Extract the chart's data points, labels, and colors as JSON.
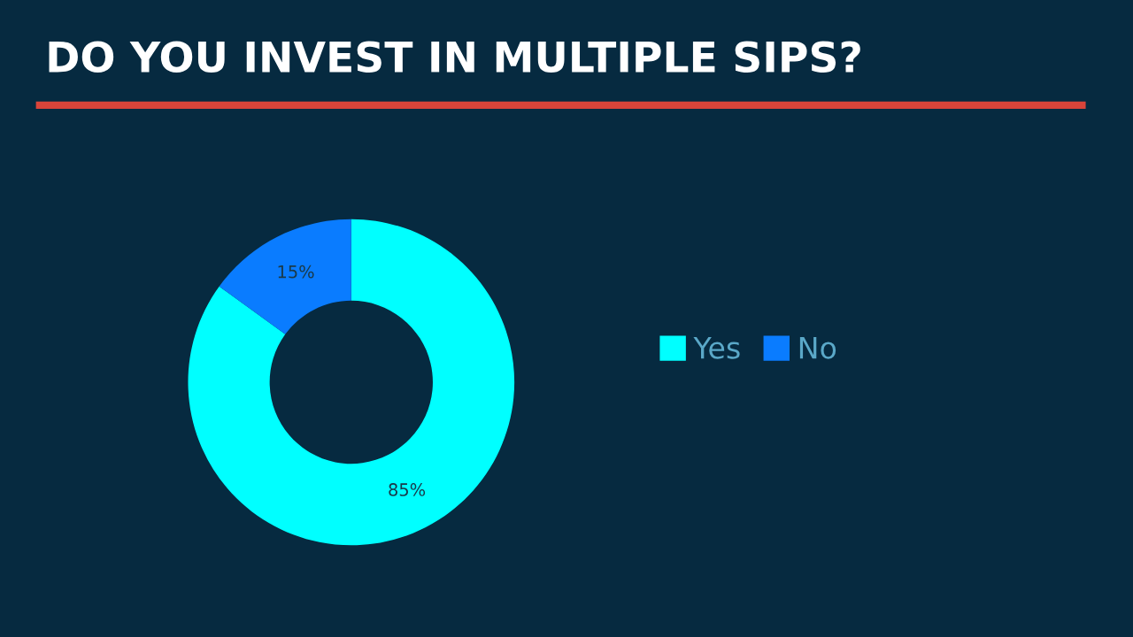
{
  "chart_data": {
    "type": "donut",
    "title": "DO YOU INVEST IN MULTIPLE SIPS?",
    "categories": [
      "Yes",
      "No"
    ],
    "values": [
      85,
      15
    ],
    "colors": [
      "#00ffff",
      "#0a7cff"
    ],
    "value_labels": [
      "85%",
      "15%"
    ],
    "legend": "right"
  }
}
